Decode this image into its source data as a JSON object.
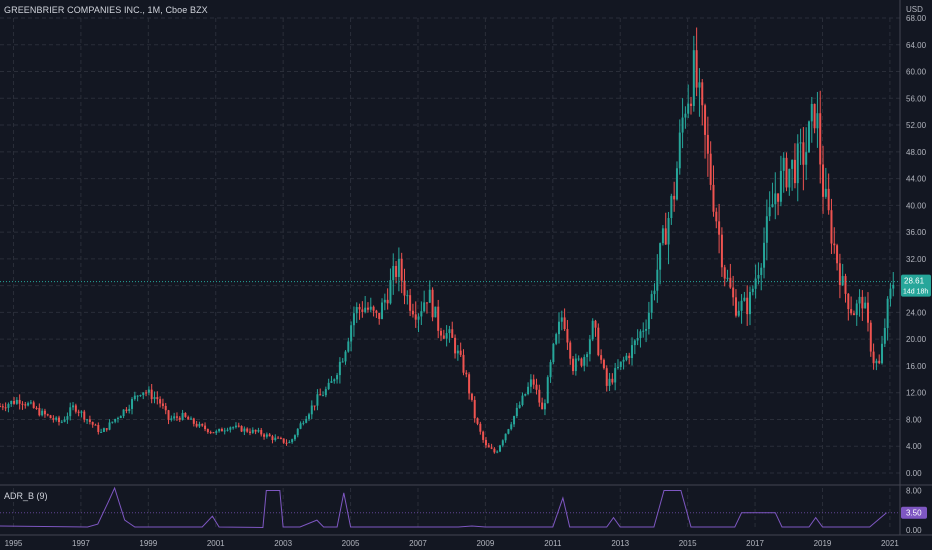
{
  "header": {
    "title": "GREENBRIER COMPANIES INC., 1M, Cboe BZX",
    "currency": "USD"
  },
  "indicator": {
    "title": "ADR_B (9)",
    "current_label": "3.50",
    "ticks": [
      "8.00",
      "4.00",
      "0.00"
    ]
  },
  "price_badge": {
    "price": "28.61",
    "countdown": "14d 18h",
    "color": "#26a69a"
  },
  "colors": {
    "background": "#131722",
    "up": "#26a69a",
    "down": "#ef5350",
    "grid": "#2a2e39",
    "indicator_line": "#7e57c2"
  },
  "chart_data": {
    "type": "candlestick",
    "interval": "1M",
    "y_ticks": [
      "68.00",
      "64.00",
      "60.00",
      "56.00",
      "52.00",
      "48.00",
      "44.00",
      "40.00",
      "36.00",
      "32.00",
      "28.00",
      "24.00",
      "20.00",
      "16.00",
      "12.00",
      "8.00",
      "4.00",
      "0.00"
    ],
    "ylim": [
      0,
      68
    ],
    "x_ticks": [
      "1995",
      "1997",
      "1999",
      "2001",
      "2003",
      "2005",
      "2007",
      "2009",
      "2011",
      "2013",
      "2015",
      "2017",
      "2019",
      "2021"
    ],
    "xlim": [
      1994.6,
      2021.3
    ],
    "price_path": [
      [
        1994.6,
        10
      ],
      [
        1995.2,
        11
      ],
      [
        1995.8,
        9
      ],
      [
        1996.4,
        7.5
      ],
      [
        1996.8,
        10
      ],
      [
        1997.2,
        8
      ],
      [
        1997.6,
        6
      ],
      [
        1998.0,
        8
      ],
      [
        1998.4,
        10
      ],
      [
        1998.8,
        12.5
      ],
      [
        1999.3,
        11
      ],
      [
        1999.6,
        8
      ],
      [
        2000.0,
        8.5
      ],
      [
        2000.5,
        7
      ],
      [
        2001.0,
        6
      ],
      [
        2001.4,
        7
      ],
      [
        2001.8,
        6.5
      ],
      [
        2002.3,
        6
      ],
      [
        2002.8,
        5
      ],
      [
        2003.2,
        4.5
      ],
      [
        2003.6,
        8
      ],
      [
        2004.0,
        11
      ],
      [
        2004.4,
        13
      ],
      [
        2004.8,
        18
      ],
      [
        2005.1,
        24
      ],
      [
        2005.4,
        25
      ],
      [
        2005.8,
        23
      ],
      [
        2006.1,
        27
      ],
      [
        2006.4,
        31
      ],
      [
        2006.7,
        26
      ],
      [
        2007.0,
        24
      ],
      [
        2007.3,
        27
      ],
      [
        2007.6,
        22
      ],
      [
        2008.0,
        20
      ],
      [
        2008.4,
        15
      ],
      [
        2008.7,
        8
      ],
      [
        2009.0,
        4
      ],
      [
        2009.3,
        3
      ],
      [
        2009.6,
        6
      ],
      [
        2010.0,
        10
      ],
      [
        2010.4,
        14
      ],
      [
        2010.7,
        9
      ],
      [
        2011.0,
        18
      ],
      [
        2011.3,
        24
      ],
      [
        2011.6,
        16
      ],
      [
        2011.9,
        17
      ],
      [
        2012.2,
        22
      ],
      [
        2012.6,
        13
      ],
      [
        2013.0,
        16
      ],
      [
        2013.4,
        19
      ],
      [
        2013.8,
        23
      ],
      [
        2014.2,
        33
      ],
      [
        2014.6,
        42
      ],
      [
        2014.9,
        55
      ],
      [
        2015.2,
        60
      ],
      [
        2015.5,
        50
      ],
      [
        2015.8,
        40
      ],
      [
        2016.1,
        30
      ],
      [
        2016.4,
        25
      ],
      [
        2016.8,
        25
      ],
      [
        2017.2,
        33
      ],
      [
        2017.6,
        42
      ],
      [
        2017.9,
        45
      ],
      [
        2018.2,
        46
      ],
      [
        2018.5,
        48
      ],
      [
        2018.8,
        55
      ],
      [
        2019.0,
        43
      ],
      [
        2019.3,
        35
      ],
      [
        2019.6,
        28
      ],
      [
        2019.9,
        24
      ],
      [
        2020.2,
        26
      ],
      [
        2020.5,
        17
      ],
      [
        2020.7,
        16
      ],
      [
        2020.9,
        24
      ],
      [
        2021.1,
        28.6
      ]
    ],
    "indicator_path": [
      [
        1994.6,
        0.8
      ],
      [
        1997.2,
        0.6
      ],
      [
        1997.5,
        1.2
      ],
      [
        1997.8,
        5.5
      ],
      [
        1998.0,
        8.5
      ],
      [
        1998.3,
        2
      ],
      [
        1998.6,
        0.6
      ],
      [
        2000.6,
        0.6
      ],
      [
        2000.9,
        2.8
      ],
      [
        2001.1,
        0.6
      ],
      [
        2002.4,
        0.5
      ],
      [
        2002.5,
        8
      ],
      [
        2002.9,
        8
      ],
      [
        2003.0,
        0.6
      ],
      [
        2003.5,
        0.6
      ],
      [
        2004.0,
        2
      ],
      [
        2004.2,
        0.6
      ],
      [
        2004.6,
        0.6
      ],
      [
        2004.8,
        7.5
      ],
      [
        2005.0,
        0.6
      ],
      [
        2008.2,
        0.6
      ],
      [
        2008.6,
        0.8
      ],
      [
        2009.0,
        0.6
      ],
      [
        2011.0,
        0.6
      ],
      [
        2011.3,
        6.5
      ],
      [
        2011.5,
        0.6
      ],
      [
        2012.6,
        0.6
      ],
      [
        2012.8,
        2.5
      ],
      [
        2013.0,
        0.6
      ],
      [
        2014.0,
        0.6
      ],
      [
        2014.3,
        8
      ],
      [
        2014.8,
        8
      ],
      [
        2015.1,
        0.6
      ],
      [
        2016.4,
        0.6
      ],
      [
        2016.6,
        3.5
      ],
      [
        2017.6,
        3.5
      ],
      [
        2017.8,
        0.6
      ],
      [
        2018.6,
        0.6
      ],
      [
        2018.8,
        2.5
      ],
      [
        2019.0,
        0.6
      ],
      [
        2020.4,
        0.6
      ],
      [
        2020.9,
        3.5
      ]
    ],
    "indicator_ylim": [
      0,
      8.5
    ]
  }
}
